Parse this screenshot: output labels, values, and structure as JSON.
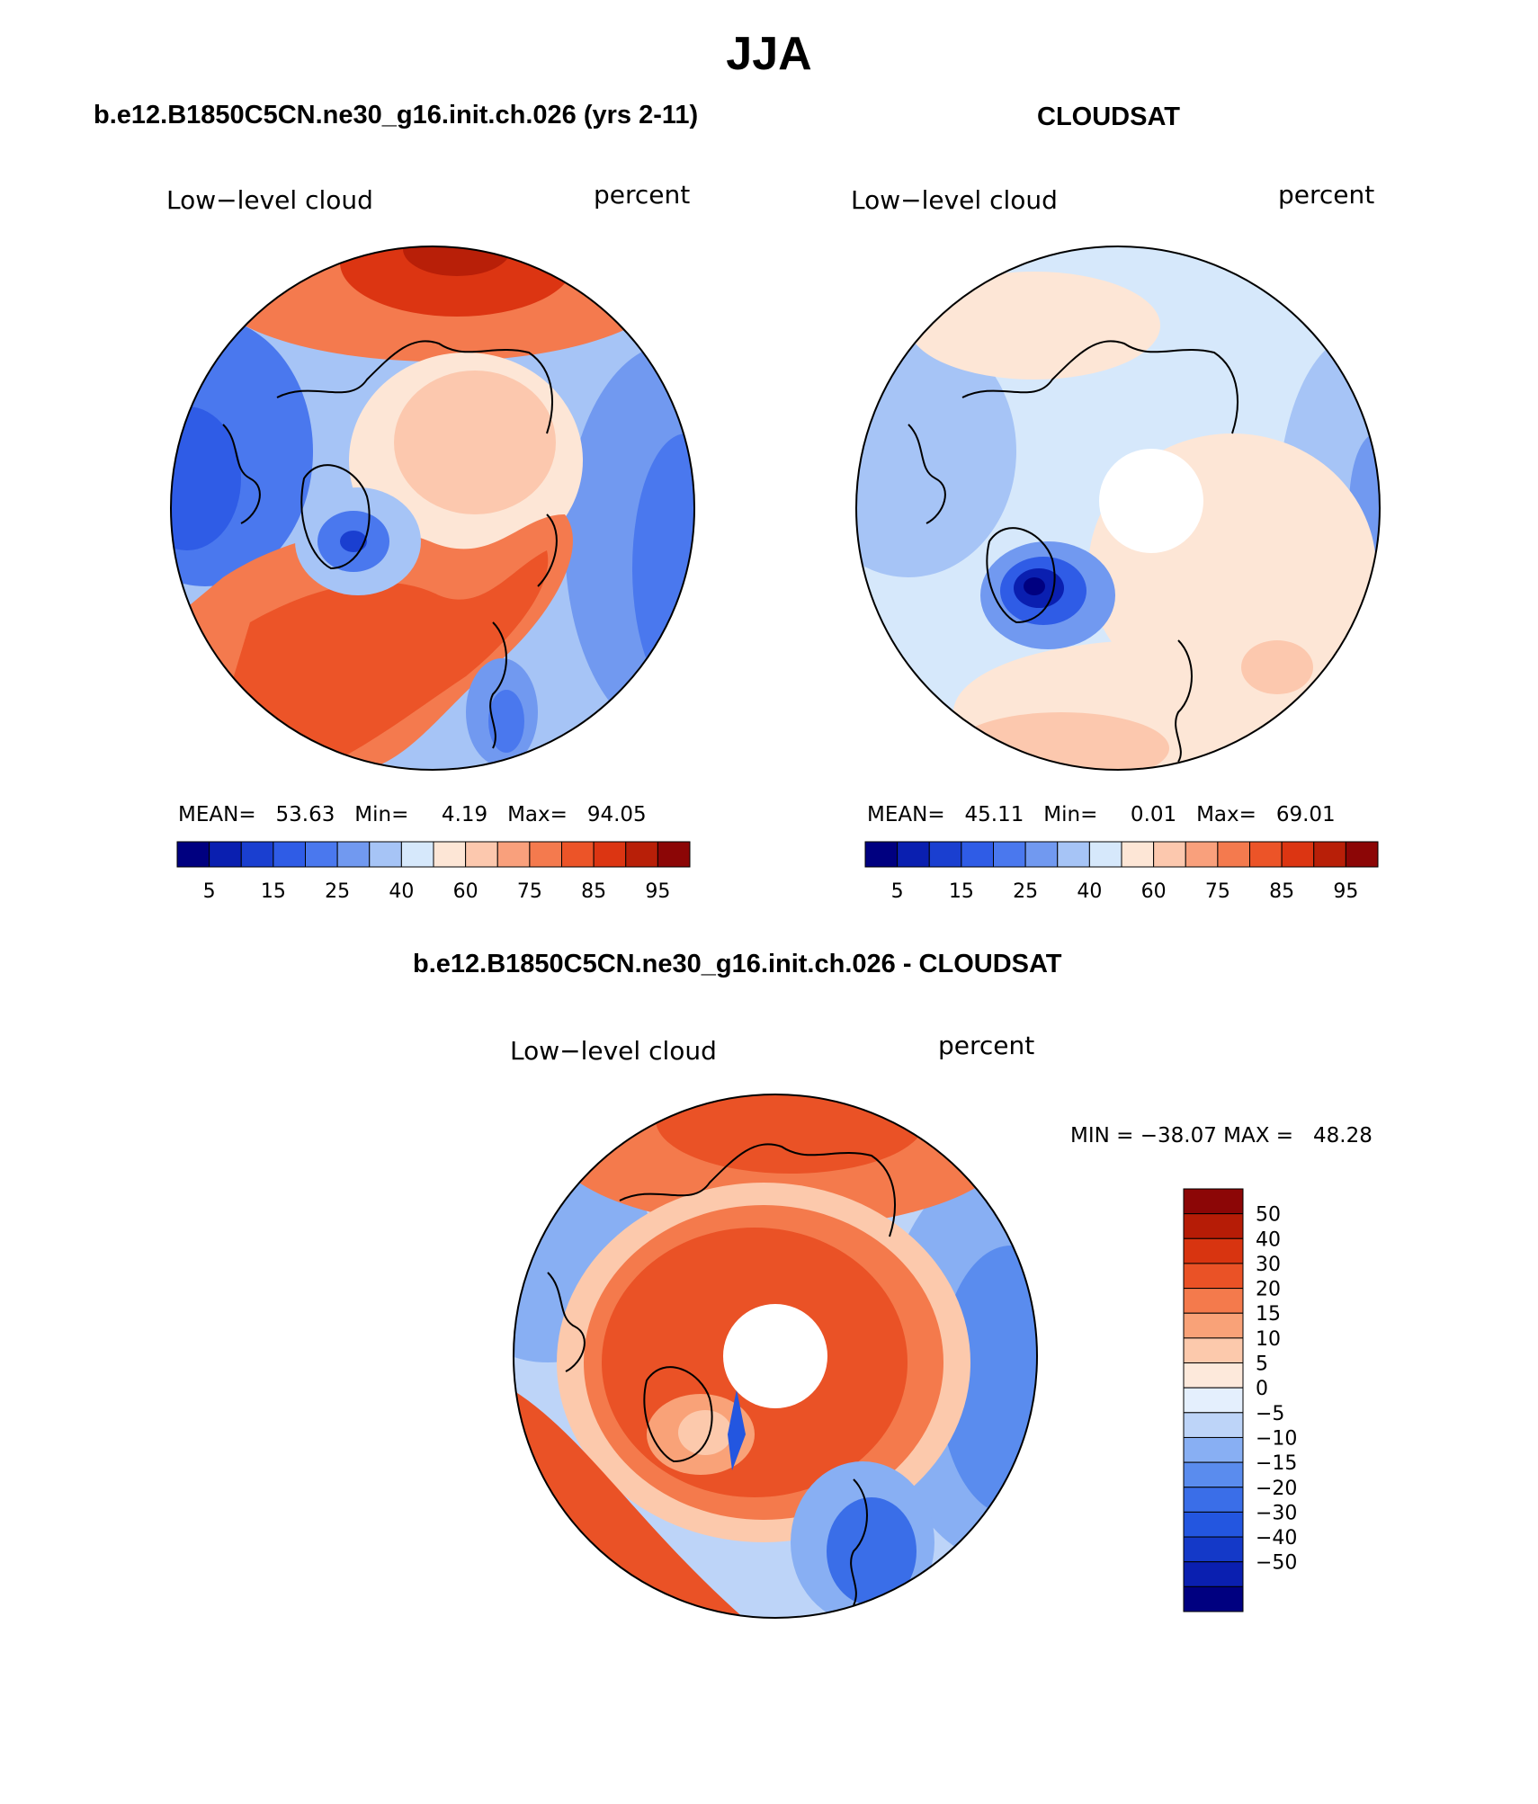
{
  "figure": {
    "title": "JJA"
  },
  "panels": [
    {
      "case_title": "b.e12.B1850C5CN.ne30_g16.init.ch.026 (yrs 2-11)",
      "variable": "Low−level cloud",
      "units": "percent",
      "stats": "MEAN=   53.63   Min=     4.19   Max=   94.05",
      "mean": 53.63,
      "min": 4.19,
      "max": 94.05,
      "polar_hole": false
    },
    {
      "case_title": "CLOUDSAT",
      "variable": "Low−level cloud",
      "units": "percent",
      "stats": "MEAN=   45.11   Min=     0.01   Max=   69.01",
      "mean": 45.11,
      "min": 0.01,
      "max": 69.01,
      "polar_hole": true
    },
    {
      "case_title": "b.e12.B1850C5CN.ne30_g16.init.ch.026 - CLOUDSAT",
      "variable": "Low−level cloud",
      "units": "percent",
      "stats": "MIN = −38.07 MAX =   48.28",
      "min": -38.07,
      "max": 48.28,
      "polar_hole": true
    }
  ],
  "colorbars": {
    "absolute": {
      "colors": [
        "#000080",
        "#0a1fb0",
        "#1a3fd0",
        "#2f5ce6",
        "#4a78ee",
        "#7199f0",
        "#a6c4f6",
        "#d6e8fb",
        "#fde6d6",
        "#fcc8ae",
        "#f9a07c",
        "#f47a4e",
        "#ec5428",
        "#dc3512",
        "#b81f08",
        "#8c0606"
      ],
      "tick_labels": [
        "5",
        "15",
        "25",
        "40",
        "60",
        "75",
        "85",
        "95"
      ]
    },
    "difference": {
      "colors": [
        "#000080",
        "#0a1fb0",
        "#1439c8",
        "#2356e0",
        "#3a6ee8",
        "#5a8cee",
        "#88aff3",
        "#bdd4f8",
        "#e4effd",
        "#fde9db",
        "#fcc9ac",
        "#f9a278",
        "#f47a4c",
        "#ea5226",
        "#d83410",
        "#b61c06",
        "#8c0606"
      ],
      "tick_labels": [
        "50",
        "40",
        "30",
        "20",
        "15",
        "10",
        "5",
        "0",
        "−5",
        "−10",
        "−15",
        "−20",
        "−30",
        "−40",
        "−50"
      ]
    }
  },
  "map_colors": {
    "coast": "#000000",
    "polar_hole": "#ffffff"
  }
}
